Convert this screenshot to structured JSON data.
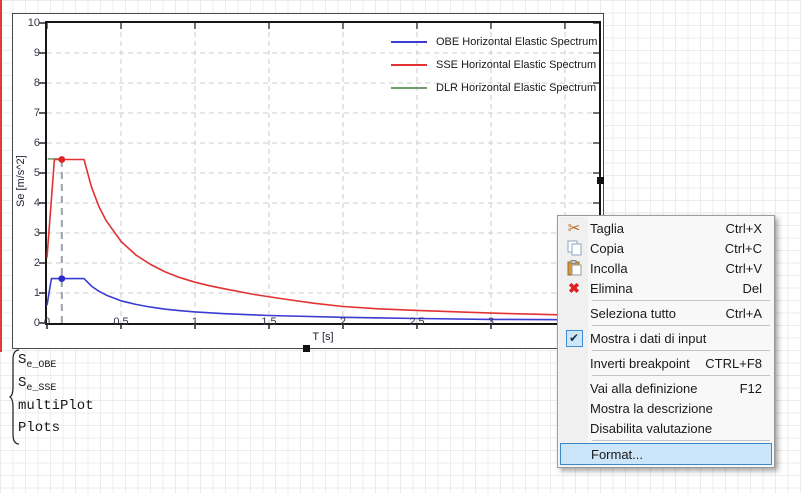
{
  "chart_data": {
    "type": "line",
    "title": "",
    "xlabel": "T [s]",
    "ylabel": "Se [m/s^2]",
    "xlim": [
      0,
      3.73
    ],
    "ylim": [
      0,
      10
    ],
    "x_tick_labels": [
      "0",
      "0.5",
      "1",
      "1.5",
      "2",
      "2.5",
      "3",
      "3.5"
    ],
    "x_tick_values": [
      0,
      0.5,
      1,
      1.5,
      2,
      2.5,
      3,
      3.5
    ],
    "y_tick_labels": [
      "0",
      "1",
      "2",
      "3",
      "4",
      "5",
      "6",
      "7",
      "8",
      "9",
      "10"
    ],
    "y_tick_values": [
      0,
      1,
      2,
      3,
      4,
      5,
      6,
      7,
      8,
      9,
      10
    ],
    "grid": "dashed",
    "grid_color": "#cccccc",
    "legend_position": "top-right",
    "series": [
      {
        "name": "OBE Horizontal Elastic Spectrum",
        "color": "#3c3cd2",
        "x": [
          0,
          0.03,
          0.25,
          0.3,
          0.35,
          0.4,
          0.5,
          0.6,
          0.7,
          0.8,
          0.9,
          1.0,
          1.2,
          1.5,
          2.0,
          2.5,
          3.0,
          3.5,
          3.73
        ],
        "y": [
          0.59,
          1.48,
          1.48,
          1.23,
          1.06,
          0.93,
          0.74,
          0.62,
          0.53,
          0.46,
          0.41,
          0.37,
          0.31,
          0.25,
          0.19,
          0.15,
          0.12,
          0.11,
          0.1
        ]
      },
      {
        "name": "SSE Horizontal Elastic Spectrum",
        "color": "#e23232",
        "x": [
          0,
          0.05,
          0.25,
          0.3,
          0.35,
          0.4,
          0.5,
          0.6,
          0.7,
          0.8,
          0.9,
          1.0,
          1.1,
          1.2,
          1.4,
          1.6,
          1.8,
          2.0,
          2.25,
          2.5,
          3.0,
          3.5,
          3.73
        ],
        "y": [
          2.18,
          5.45,
          5.45,
          4.54,
          3.89,
          3.41,
          2.72,
          2.27,
          1.95,
          1.7,
          1.51,
          1.36,
          1.24,
          1.14,
          0.95,
          0.8,
          0.66,
          0.55,
          0.47,
          0.42,
          0.33,
          0.27,
          0.25
        ]
      },
      {
        "name": "DLR Horizontal Elastic Spectrum",
        "color": "#6f9f6f",
        "x": [
          0.005,
          0.1
        ],
        "y": [
          5.47,
          5.47
        ]
      }
    ],
    "markers": [
      {
        "x": 0.1,
        "y": 5.45,
        "color": "#e22222"
      },
      {
        "x": 0.1,
        "y": 1.48,
        "color": "#2a2ac8"
      }
    ],
    "marker_line": {
      "x": 0.1,
      "from_y": 0,
      "to_y": 5.45,
      "color": "#9aa2ad"
    }
  },
  "expressions": {
    "lines": [
      {
        "base": "S",
        "sub": "e_OBE"
      },
      {
        "base": "S",
        "sub": "e_SSE"
      },
      {
        "plain": "multiPlot"
      },
      {
        "plain": "Plots"
      }
    ]
  },
  "context_menu": {
    "items": [
      {
        "label": "Taglia",
        "shortcut": "Ctrl+X",
        "icon": "scissors-icon"
      },
      {
        "label": "Copia",
        "shortcut": "Ctrl+C",
        "icon": "copy-icon"
      },
      {
        "label": "Incolla",
        "shortcut": "Ctrl+V",
        "icon": "paste-icon"
      },
      {
        "label": "Elimina",
        "shortcut": "Del",
        "icon": "delete-icon"
      },
      {
        "separator": true
      },
      {
        "label": "Seleziona tutto",
        "shortcut": "Ctrl+A"
      },
      {
        "separator": true
      },
      {
        "label": "Mostra i dati di input",
        "checked": true,
        "icon": "checkmark-icon"
      },
      {
        "separator": true
      },
      {
        "label": "Inverti breakpoint",
        "shortcut": "CTRL+F8"
      },
      {
        "separator": true
      },
      {
        "label": "Vai alla definizione",
        "shortcut": "F12"
      },
      {
        "label": "Mostra la descrizione"
      },
      {
        "label": "Disabilita valutazione"
      },
      {
        "separator": true
      },
      {
        "label": "Format...",
        "highlighted": true
      }
    ]
  }
}
